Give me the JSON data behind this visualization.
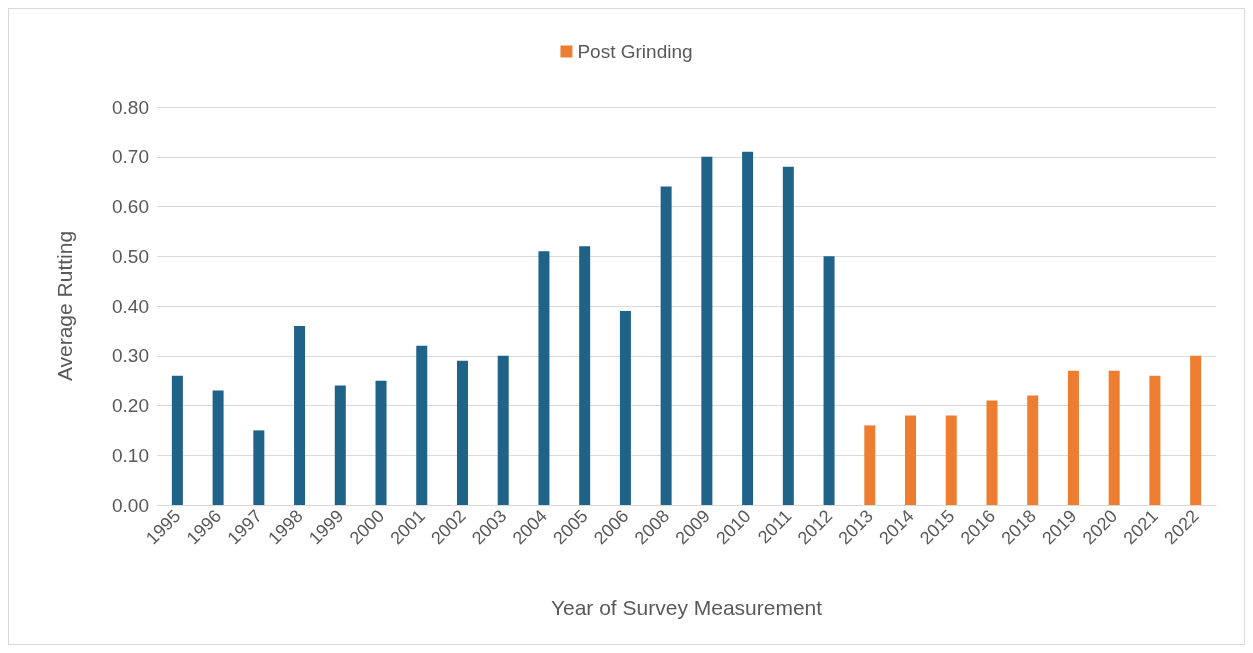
{
  "chart_data": {
    "type": "bar",
    "xlabel": "Year of Survey Measurement",
    "ylabel": "Average Rutting",
    "categories": [
      "1995",
      "1996",
      "1997",
      "1998",
      "1999",
      "2000",
      "2001",
      "2002",
      "2003",
      "2004",
      "2005",
      "2006",
      "2008",
      "2009",
      "2010",
      "2011",
      "2012",
      "2013",
      "2014",
      "2015",
      "2016",
      "2018",
      "2019",
      "2020",
      "2021",
      "2022"
    ],
    "series": [
      {
        "color": "#1f6388",
        "values": [
          0.26,
          0.23,
          0.15,
          0.36,
          0.24,
          0.25,
          0.32,
          0.29,
          0.3,
          0.51,
          0.52,
          0.39,
          0.64,
          0.7,
          0.71,
          0.68,
          0.5,
          null,
          null,
          null,
          null,
          null,
          null,
          null,
          null,
          null
        ]
      },
      {
        "name": "Post Grinding",
        "color": "#ed7d31",
        "values": [
          null,
          null,
          null,
          null,
          null,
          null,
          null,
          null,
          null,
          null,
          null,
          null,
          null,
          null,
          null,
          null,
          null,
          0.16,
          0.18,
          0.18,
          0.21,
          0.22,
          0.27,
          0.27,
          0.26,
          0.3
        ]
      }
    ],
    "ylim": [
      0,
      0.8
    ],
    "yticks": [
      {
        "value": 0,
        "label": "0.00"
      },
      {
        "value": 0.1,
        "label": "0.10"
      },
      {
        "value": 0.2,
        "label": "0.20"
      },
      {
        "value": 0.3,
        "label": "0.30"
      },
      {
        "value": 0.4,
        "label": "0.40"
      },
      {
        "value": 0.5,
        "label": "0.50"
      },
      {
        "value": 0.6,
        "label": "0.60"
      },
      {
        "value": 0.7,
        "label": "0.70"
      },
      {
        "value": 0.8,
        "label": "0.80"
      }
    ],
    "grid": "y",
    "legend": "top"
  }
}
